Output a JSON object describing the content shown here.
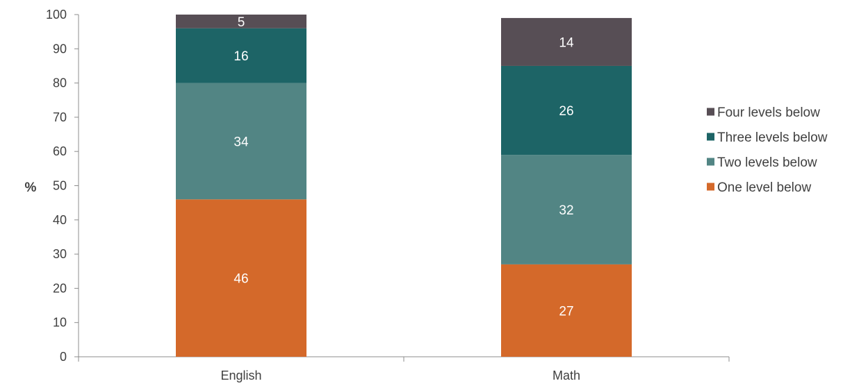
{
  "chart_data": {
    "type": "bar",
    "stacked": true,
    "categories": [
      "English",
      "Math"
    ],
    "series": [
      {
        "name": "One level below",
        "values": [
          46,
          27
        ],
        "color": "#D4692A"
      },
      {
        "name": "Two levels below",
        "values": [
          34,
          32
        ],
        "color": "#528584"
      },
      {
        "name": "Three levels below",
        "values": [
          16,
          26
        ],
        "color": "#1D6466"
      },
      {
        "name": "Four levels below",
        "values": [
          5,
          14
        ],
        "color": "#574E55"
      }
    ],
    "legend_order": [
      "Four levels below",
      "Three levels below",
      "Two levels below",
      "One level below"
    ],
    "legend_position": "right",
    "ylabel": "%",
    "xlabel": "",
    "ylim": [
      0,
      100
    ],
    "yticks": [
      0,
      10,
      20,
      30,
      40,
      50,
      60,
      70,
      80,
      90,
      100
    ],
    "grid": false
  }
}
